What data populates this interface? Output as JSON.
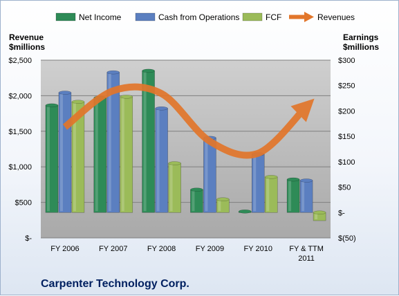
{
  "chart_data": {
    "type": "bar",
    "title": "Carpenter Technology Corp.",
    "left_axis": {
      "label_line1": "Revenue",
      "label_line2": "$millions",
      "range": [
        0,
        2500
      ],
      "ticks": [
        0,
        500,
        1000,
        1500,
        2000,
        2500
      ],
      "tick_labels": [
        "$-",
        "$500",
        "$1,000",
        "$1,500",
        "$2,000",
        "$2,500"
      ]
    },
    "right_axis": {
      "label_line1": "Earnings",
      "label_line2": "$millions",
      "range": [
        -50,
        300
      ],
      "ticks": [
        -50,
        0,
        50,
        100,
        150,
        200,
        250,
        300
      ],
      "tick_labels": [
        "$(50)",
        "$-",
        "$50",
        "$100",
        "$150",
        "$200",
        "$250",
        "$300"
      ]
    },
    "categories": [
      [
        "FY 2006"
      ],
      [
        "FY 2007"
      ],
      [
        "FY 2008"
      ],
      [
        "FY 2009"
      ],
      [
        "FY 2010"
      ],
      [
        "FY & TTM",
        "2011"
      ]
    ],
    "series": [
      {
        "name": "Net Income",
        "axis": "right",
        "kind": "bar",
        "color": "#2e8b57",
        "values": [
          211,
          226,
          279,
          45,
          2,
          65
        ]
      },
      {
        "name": "Cash from Operations",
        "axis": "right",
        "kind": "bar",
        "color": "#5b7fc0",
        "values": [
          236,
          276,
          205,
          147,
          115,
          63
        ]
      },
      {
        "name": "FCF",
        "axis": "right",
        "kind": "bar",
        "color": "#9bbb59",
        "values": [
          218,
          228,
          97,
          26,
          70,
          -16
        ]
      },
      {
        "name": "Revenues",
        "axis": "left",
        "kind": "line",
        "color": "#e2762b",
        "values": [
          1560,
          2070,
          2030,
          1360,
          1190,
          1850
        ]
      }
    ],
    "legend_position": "top",
    "grid": true
  },
  "colors": {
    "plot_fill_top": "#cfcfcf",
    "plot_fill_bottom": "#a9a9a9",
    "gridline": "#7f7f7f",
    "title_color": "#002060"
  }
}
